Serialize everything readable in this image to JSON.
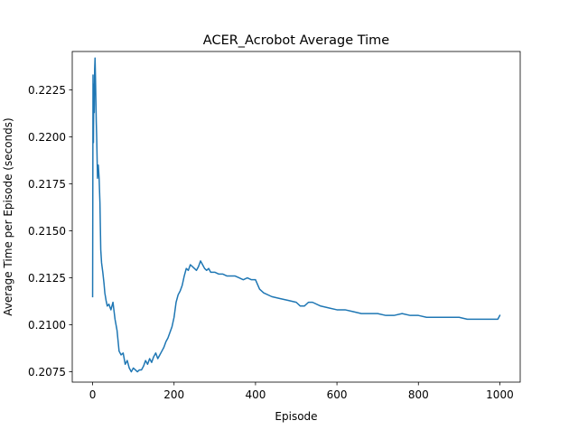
{
  "chart_data": {
    "type": "line",
    "title": "ACER_Acrobot Average Time",
    "xlabel": "Episode",
    "ylabel": "Average Time per Episode (seconds)",
    "xlim": [
      -50,
      1050
    ],
    "ylim": [
      0.20695,
      0.22455
    ],
    "xticks": [
      0,
      200,
      400,
      600,
      800,
      1000
    ],
    "xtick_labels": [
      "0",
      "200",
      "400",
      "600",
      "800",
      "1000"
    ],
    "yticks": [
      0.2075,
      0.21,
      0.2125,
      0.215,
      0.2175,
      0.22,
      0.2225
    ],
    "ytick_labels": [
      "0.2075",
      "0.2100",
      "0.2125",
      "0.2150",
      "0.2175",
      "0.2200",
      "0.2225"
    ],
    "grid": false,
    "series": [
      {
        "color": "#1f77b4",
        "x": [
          0,
          1,
          2,
          3,
          4,
          5,
          6,
          7,
          8,
          9,
          10,
          12,
          14,
          16,
          18,
          20,
          22,
          25,
          28,
          30,
          33,
          36,
          40,
          45,
          50,
          55,
          60,
          65,
          70,
          75,
          80,
          85,
          90,
          95,
          100,
          105,
          110,
          115,
          120,
          125,
          130,
          135,
          140,
          145,
          150,
          155,
          160,
          165,
          170,
          175,
          180,
          185,
          190,
          195,
          200,
          205,
          210,
          215,
          220,
          225,
          230,
          235,
          240,
          245,
          250,
          255,
          260,
          265,
          270,
          275,
          280,
          285,
          290,
          300,
          310,
          320,
          330,
          340,
          350,
          360,
          370,
          380,
          390,
          400,
          410,
          420,
          440,
          460,
          480,
          500,
          510,
          520,
          530,
          540,
          560,
          580,
          600,
          620,
          640,
          660,
          680,
          700,
          720,
          740,
          760,
          780,
          800,
          820,
          840,
          860,
          880,
          900,
          920,
          940,
          960,
          980,
          990,
          995,
          1000
        ],
        "y": [
          0.2115,
          0.2233,
          0.2197,
          0.2228,
          0.2213,
          0.2236,
          0.2242,
          0.2232,
          0.222,
          0.2208,
          0.22,
          0.2178,
          0.2185,
          0.2178,
          0.2165,
          0.214,
          0.2133,
          0.2128,
          0.2122,
          0.2117,
          0.2113,
          0.211,
          0.2111,
          0.2108,
          0.2112,
          0.2103,
          0.2097,
          0.2086,
          0.2084,
          0.2085,
          0.2079,
          0.2081,
          0.2077,
          0.2075,
          0.2077,
          0.2076,
          0.2075,
          0.2076,
          0.2076,
          0.2078,
          0.2081,
          0.2079,
          0.2082,
          0.208,
          0.2083,
          0.2085,
          0.2082,
          0.2084,
          0.2086,
          0.2088,
          0.2091,
          0.2093,
          0.2096,
          0.2099,
          0.2104,
          0.2112,
          0.2116,
          0.2118,
          0.2121,
          0.2126,
          0.213,
          0.2129,
          0.2132,
          0.2131,
          0.213,
          0.2129,
          0.2131,
          0.2134,
          0.2132,
          0.213,
          0.2129,
          0.213,
          0.2128,
          0.2128,
          0.2127,
          0.2127,
          0.2126,
          0.2126,
          0.2126,
          0.2125,
          0.2124,
          0.2125,
          0.2124,
          0.2124,
          0.2119,
          0.2117,
          0.2115,
          0.2114,
          0.2113,
          0.2112,
          0.211,
          0.211,
          0.2112,
          0.2112,
          0.211,
          0.2109,
          0.2108,
          0.2108,
          0.2107,
          0.2106,
          0.2106,
          0.2106,
          0.2105,
          0.2105,
          0.2106,
          0.2105,
          0.2105,
          0.2104,
          0.2104,
          0.2104,
          0.2104,
          0.2104,
          0.2103,
          0.2103,
          0.2103,
          0.2103,
          0.2103,
          0.2103,
          0.2105
        ]
      }
    ]
  }
}
